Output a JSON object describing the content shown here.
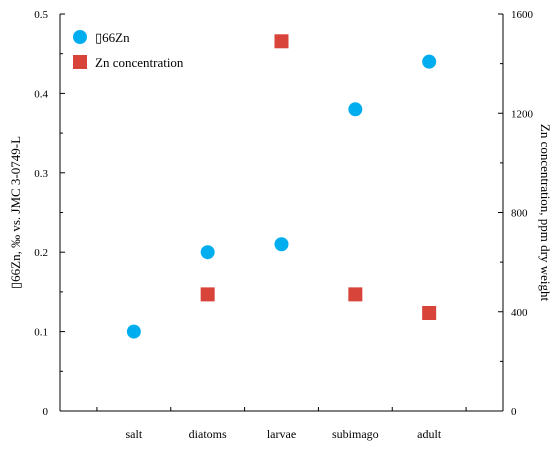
{
  "colors": {
    "zn66_marker": "#00aeef",
    "zn_conc_marker": "#d9443a",
    "axis": "#000000",
    "background": "#ffffff"
  },
  "chart_data": {
    "type": "scatter",
    "categories": [
      "salt",
      "diatoms",
      "larvae",
      "subimago",
      "adult"
    ],
    "left_axis": {
      "label": "▯66Zn, ‰ vs. JMC 3-0749-L",
      "ylim": [
        0,
        0.5
      ],
      "ticks": [
        "0",
        "0.1",
        "0.2",
        "0.3",
        "0.4",
        "0.5"
      ],
      "tick_values": [
        0,
        0.1,
        0.2,
        0.3,
        0.4,
        0.5
      ]
    },
    "right_axis": {
      "label": "Zn concentration, ppm dry weight",
      "ylim": [
        0,
        1600
      ],
      "ticks": [
        "0",
        "400",
        "800",
        "1200",
        "1600"
      ],
      "tick_values": [
        0,
        400,
        800,
        1200,
        1600
      ]
    },
    "series": [
      {
        "name": "▯66Zn",
        "axis": "left",
        "marker": "circle",
        "x": [
          "salt",
          "diatoms",
          "larvae",
          "subimago",
          "adult"
        ],
        "values": [
          0.1,
          0.2,
          0.21,
          0.38,
          0.44
        ]
      },
      {
        "name": "Zn concentration",
        "axis": "right",
        "marker": "square",
        "x": [
          "diatoms",
          "larvae",
          "subimago",
          "adult"
        ],
        "values": [
          470,
          1490,
          470,
          395
        ]
      }
    ],
    "legend": {
      "position": "top-left",
      "entries": [
        "▯66Zn",
        "Zn concentration"
      ]
    },
    "grid": false
  }
}
